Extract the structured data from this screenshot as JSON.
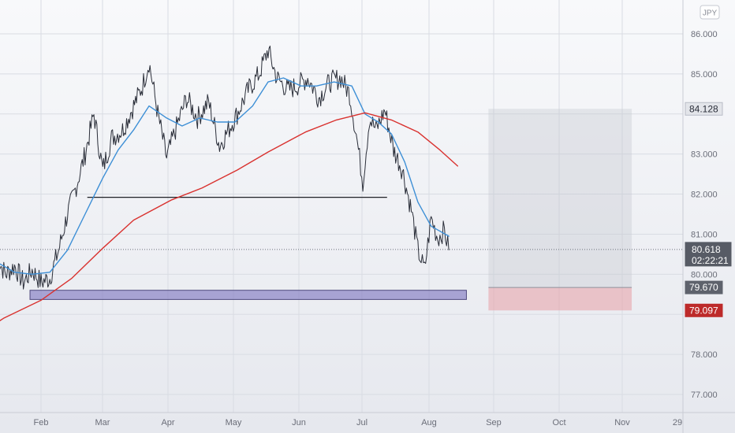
{
  "chart_data": {
    "type": "line",
    "currency": "JPY",
    "ylim": [
      76.75,
      86.75
    ],
    "y_ticks": [
      "86.000",
      "85.000",
      "83.000",
      "82.000",
      "81.000",
      "80.000",
      "78.000",
      "77.000"
    ],
    "x_ticks": [
      "Feb",
      "Mar",
      "Apr",
      "May",
      "Jun",
      "Jul",
      "Aug",
      "Sep",
      "Oct",
      "Nov",
      "29"
    ],
    "current_price": {
      "value": 80.618,
      "label": "80.618",
      "countdown": "02:22:21"
    },
    "price_labels": [
      {
        "value": 84.128,
        "label": "84.128",
        "style": "gray"
      },
      {
        "value": 79.67,
        "label": "79.670",
        "style": "dark"
      },
      {
        "value": 79.097,
        "label": "79.097",
        "style": "red"
      }
    ],
    "annotations": {
      "horizontal_line": {
        "from": "Feb 22",
        "to": "Jul 8",
        "value": 81.92
      },
      "support_zone": {
        "from": "Jan 27",
        "to": "Aug 13",
        "top": 79.6,
        "bottom": 79.37
      },
      "position_box": {
        "from": "Aug 23",
        "to": "Oct 27",
        "entry": 79.67,
        "target": 84.128,
        "stop": 79.097
      }
    },
    "series": [
      {
        "type": "price",
        "color": "#2a2e39",
        "points": [
          [
            "Jan 12",
            80.4
          ],
          [
            "Jan 16",
            80.0
          ],
          [
            "Jan 20",
            80.2
          ],
          [
            "Jan 24",
            79.8
          ],
          [
            "Jan 28",
            80.1
          ],
          [
            "Feb 1",
            79.8
          ],
          [
            "Feb 5",
            79.9
          ],
          [
            "Feb 9",
            80.6
          ],
          [
            "Feb 13",
            81.5
          ],
          [
            "Feb 17",
            82.2
          ],
          [
            "Feb 21",
            83.0
          ],
          [
            "Feb 25",
            84.0
          ],
          [
            "Mar 1",
            82.6
          ],
          [
            "Mar 5",
            83.4
          ],
          [
            "Mar 10",
            83.6
          ],
          [
            "Mar 15",
            84.2
          ],
          [
            "Mar 19",
            84.7
          ],
          [
            "Mar 22",
            85.3
          ],
          [
            "Mar 26",
            84.0
          ],
          [
            "Mar 30",
            82.9
          ],
          [
            "Apr 3",
            83.6
          ],
          [
            "Apr 8",
            84.4
          ],
          [
            "Apr 13",
            83.9
          ],
          [
            "Apr 18",
            84.3
          ],
          [
            "Apr 23",
            83.2
          ],
          [
            "Apr 27",
            83.6
          ],
          [
            "May 1",
            84.0
          ],
          [
            "May 6",
            84.6
          ],
          [
            "May 11",
            85.0
          ],
          [
            "May 15",
            85.6
          ],
          [
            "May 19",
            84.9
          ],
          [
            "May 24",
            84.6
          ],
          [
            "May 28",
            84.7
          ],
          [
            "Jun 2",
            84.9
          ],
          [
            "Jun 7",
            84.4
          ],
          [
            "Jun 12",
            84.8
          ],
          [
            "Jun 17",
            84.9
          ],
          [
            "Jun 21",
            84.5
          ],
          [
            "Jun 24",
            83.5
          ],
          [
            "Jun 27",
            82.3
          ],
          [
            "Jun 30",
            83.9
          ],
          [
            "Jul 3",
            83.6
          ],
          [
            "Jul 7",
            84.1
          ],
          [
            "Jul 11",
            83.1
          ],
          [
            "Jul 15",
            82.6
          ],
          [
            "Jul 19",
            81.6
          ],
          [
            "Jul 22",
            80.6
          ],
          [
            "Jul 25",
            80.1
          ],
          [
            "Jul 28",
            81.4
          ],
          [
            "Jul 31",
            80.9
          ],
          [
            "Aug 3",
            81.1
          ],
          [
            "Aug 5",
            80.6
          ]
        ]
      },
      {
        "type": "moving_average_short",
        "color": "#3d8fd6",
        "points": [
          [
            "Jan 12",
            80.3
          ],
          [
            "Jan 20",
            80.05
          ],
          [
            "Jan 28",
            80.0
          ],
          [
            "Feb 5",
            80.05
          ],
          [
            "Feb 13",
            80.6
          ],
          [
            "Feb 21",
            81.5
          ],
          [
            "Mar 1",
            82.4
          ],
          [
            "Mar 8",
            83.1
          ],
          [
            "Mar 15",
            83.6
          ],
          [
            "Mar 22",
            84.2
          ],
          [
            "Mar 30",
            83.9
          ],
          [
            "Apr 6",
            83.7
          ],
          [
            "Apr 14",
            83.9
          ],
          [
            "Apr 22",
            83.8
          ],
          [
            "Apr 30",
            83.8
          ],
          [
            "May 8",
            84.2
          ],
          [
            "May 15",
            84.8
          ],
          [
            "May 22",
            84.9
          ],
          [
            "May 30",
            84.7
          ],
          [
            "Jun 6",
            84.7
          ],
          [
            "Jun 14",
            84.8
          ],
          [
            "Jun 22",
            84.7
          ],
          [
            "Jun 28",
            84.0
          ],
          [
            "Jul 4",
            83.8
          ],
          [
            "Jul 10",
            83.5
          ],
          [
            "Jul 16",
            82.8
          ],
          [
            "Jul 22",
            81.8
          ],
          [
            "Jul 28",
            81.2
          ],
          [
            "Aug 5",
            80.95
          ]
        ]
      },
      {
        "type": "moving_average_long",
        "color": "#d9322f",
        "points": [
          [
            "Jan 1",
            78.4
          ],
          [
            "Jan 15",
            78.9
          ],
          [
            "Feb 1",
            79.35
          ],
          [
            "Feb 15",
            79.9
          ],
          [
            "Mar 1",
            80.65
          ],
          [
            "Mar 15",
            81.35
          ],
          [
            "Apr 1",
            81.85
          ],
          [
            "Apr 15",
            82.15
          ],
          [
            "May 1",
            82.6
          ],
          [
            "May 15",
            83.05
          ],
          [
            "Jun 1",
            83.55
          ],
          [
            "Jun 15",
            83.85
          ],
          [
            "Jun 28",
            84.03
          ],
          [
            "Jul 10",
            83.85
          ],
          [
            "Jul 22",
            83.55
          ],
          [
            "Aug 1",
            83.1
          ],
          [
            "Aug 9",
            82.7
          ]
        ]
      }
    ]
  }
}
